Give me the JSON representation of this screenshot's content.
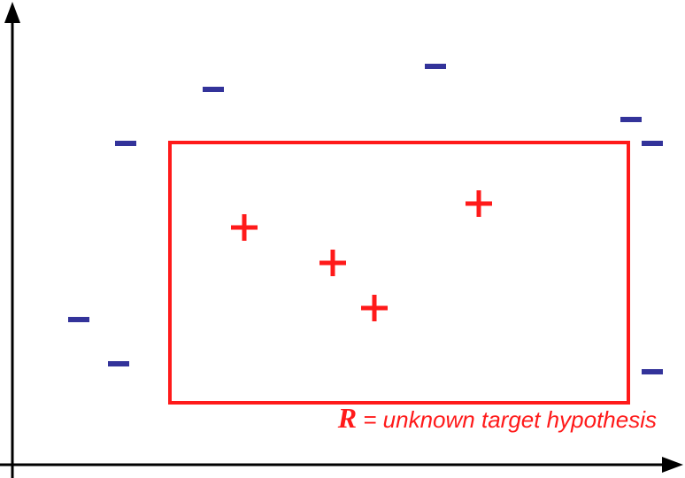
{
  "colors": {
    "axis": "#000000",
    "positive": "#ff1a1a",
    "negative": "#33339a",
    "rectangle": "#ff1a1a",
    "caption": "#ff1a1a"
  },
  "caption": {
    "symbol": "R",
    "text": " = unknown target hypothesis"
  },
  "points": {
    "positive": [
      {
        "label": "+"
      },
      {
        "label": "+"
      },
      {
        "label": "+"
      },
      {
        "label": "+"
      }
    ],
    "negative": [
      {
        "label": "−"
      },
      {
        "label": "−"
      },
      {
        "label": "−"
      },
      {
        "label": "−"
      },
      {
        "label": "−"
      },
      {
        "label": "−"
      },
      {
        "label": "−"
      },
      {
        "label": "−"
      }
    ]
  }
}
